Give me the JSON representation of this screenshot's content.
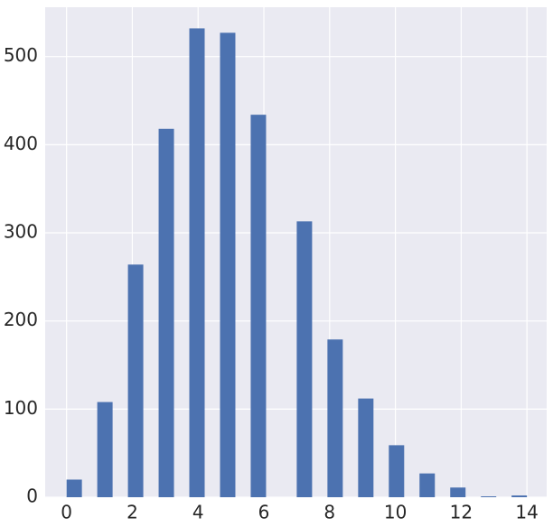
{
  "chart_data": {
    "type": "histogram",
    "bins": [
      0,
      0.4667,
      0.9333,
      1.4,
      1.8667,
      2.3333,
      2.8,
      3.2667,
      3.7333,
      4.2,
      4.6667,
      5.1333,
      5.6,
      6.0667,
      6.5333,
      7,
      7.4667,
      7.9333,
      8.4,
      8.8667,
      9.3333,
      9.8,
      10.2667,
      10.7333,
      11.2,
      11.6667,
      12.1333,
      12.6,
      13.0667,
      13.5333,
      14
    ],
    "values": [
      20,
      0,
      108,
      0,
      264,
      0,
      418,
      0,
      532,
      0,
      527,
      0,
      434,
      0,
      0,
      313,
      0,
      179,
      0,
      112,
      0,
      59,
      0,
      27,
      0,
      11,
      0,
      1,
      0,
      2
    ],
    "color": "#4c72b0",
    "xlim": [
      -0.65,
      14.6
    ],
    "xticks": [
      0,
      2,
      4,
      6,
      8,
      10,
      12,
      14
    ],
    "ylim": [
      0,
      556
    ],
    "yticks": [
      0,
      100,
      200,
      300,
      400,
      500
    ],
    "grid": true
  }
}
